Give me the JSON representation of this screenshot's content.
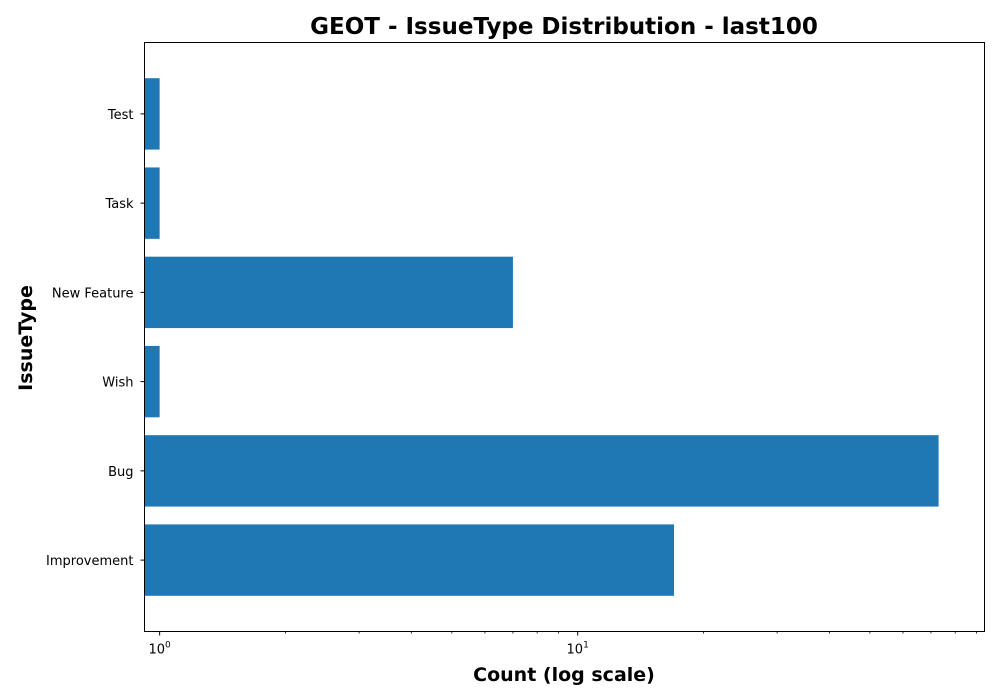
{
  "chart_data": {
    "type": "bar",
    "orientation": "horizontal",
    "title": "GEOT - IssueType Distribution - last100",
    "xlabel": "Count (log scale)",
    "ylabel": "IssueType",
    "x_scale": "log",
    "xlim": [
      0.92,
      94
    ],
    "x_major_ticks": [
      {
        "value": 1,
        "base": "10",
        "exp": "0"
      },
      {
        "value": 10,
        "base": "10",
        "exp": "1"
      }
    ],
    "categories": [
      "Improvement",
      "Bug",
      "Wish",
      "New Feature",
      "Task",
      "Test"
    ],
    "values": [
      17,
      73,
      1,
      7,
      1,
      1
    ],
    "bar_color": "#1f77b4",
    "grid": false,
    "legend": "none"
  }
}
